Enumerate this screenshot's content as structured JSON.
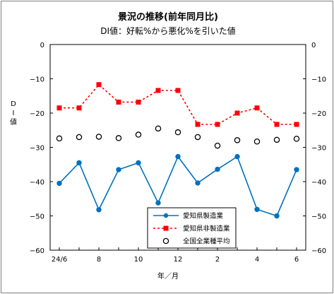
{
  "chart_data": {
    "type": "line",
    "title": "景況の推移(前年同月比)",
    "subtitle": "DI値：好転%から悪化%を引いた値",
    "ylabel": "DI値",
    "xlabel": "年／月",
    "ylim": [
      -60,
      0
    ],
    "yticks": [
      0,
      -10,
      -20,
      -30,
      -40,
      -50,
      -60
    ],
    "x_count": 13,
    "x_tick_labels": [
      {
        "index": 0,
        "label": "24/6"
      },
      {
        "index": 2,
        "label": "8"
      },
      {
        "index": 4,
        "label": "10"
      },
      {
        "index": 6,
        "label": "12"
      },
      {
        "index": 8,
        "label": "2"
      },
      {
        "index": 10,
        "label": "4"
      },
      {
        "index": 12,
        "label": "6"
      }
    ],
    "grid": false,
    "legend_position": "bottom-center",
    "series": [
      {
        "name": "愛知県製造業",
        "color": "#0070c0",
        "style": "solid-circle",
        "values": [
          -40.5,
          -34.5,
          -48.2,
          -36.5,
          -34.5,
          -46.2,
          -32.7,
          -40.4,
          -36.4,
          -32.7,
          -48.1,
          -50.0,
          -36.5
        ]
      },
      {
        "name": "愛知県非製造業",
        "color": "#ff0000",
        "style": "dashed-square",
        "values": [
          -18.5,
          -18.5,
          -11.7,
          -16.8,
          -16.8,
          -13.4,
          -13.4,
          -23.3,
          -23.3,
          -20.0,
          -18.5,
          -23.3,
          -23.3
        ]
      },
      {
        "name": "全国全業種平均",
        "color": "#000000",
        "style": "open-circle",
        "values": [
          -27.4,
          -27.0,
          -26.9,
          -27.3,
          -26.3,
          -24.5,
          -25.6,
          -27.0,
          -29.5,
          -27.9,
          -28.3,
          -27.8,
          -27.5
        ]
      }
    ]
  }
}
